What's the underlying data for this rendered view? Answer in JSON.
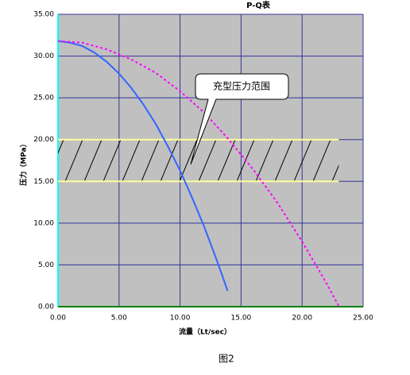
{
  "chart_data": {
    "type": "line",
    "title": "P-Q表",
    "x_label": "流量（Lt/sec）",
    "y_label": "压力（MPa）",
    "caption": "图2",
    "annotation": "充型压力范围",
    "xlim": [
      0,
      25
    ],
    "ylim": [
      0,
      35
    ],
    "xticks": [
      {
        "value": 0,
        "label": "0.00"
      },
      {
        "value": 5,
        "label": "5.00"
      },
      {
        "value": 10,
        "label": "10.00"
      },
      {
        "value": 15,
        "label": "15.00"
      },
      {
        "value": 20,
        "label": "20.00"
      },
      {
        "value": 25,
        "label": "25.00"
      }
    ],
    "yticks": [
      {
        "value": 0,
        "label": "0.00"
      },
      {
        "value": 5,
        "label": "5.00"
      },
      {
        "value": 10,
        "label": "10.00"
      },
      {
        "value": 15,
        "label": "15.00"
      },
      {
        "value": 20,
        "label": "20.00"
      },
      {
        "value": 25,
        "label": "25.00"
      },
      {
        "value": 30,
        "label": "30.00"
      },
      {
        "value": 35,
        "label": "35.00"
      }
    ],
    "grid": true,
    "band": {
      "from": 15,
      "to": 20,
      "x_end": 23,
      "color": "#ffff99"
    },
    "series": [
      {
        "color": "#3366ff",
        "dashed": false,
        "x": [
          0,
          1,
          2,
          3,
          4,
          5,
          6,
          7,
          8,
          9,
          10,
          11,
          12,
          13,
          13.9
        ],
        "values": [
          31.8,
          31.6,
          31.2,
          30.4,
          29.3,
          27.9,
          26.2,
          24.2,
          21.9,
          19.2,
          16.3,
          13.0,
          9.5,
          5.6,
          1.9
        ]
      },
      {
        "color": "#ff00ff",
        "dashed": true,
        "x": [
          0,
          2,
          4,
          6,
          8,
          10,
          12,
          14,
          16,
          18,
          20,
          22,
          23
        ],
        "values": [
          31.8,
          31.6,
          30.8,
          29.6,
          28.0,
          25.8,
          23.2,
          20.0,
          16.4,
          12.4,
          7.8,
          2.8,
          0.1
        ]
      }
    ]
  }
}
